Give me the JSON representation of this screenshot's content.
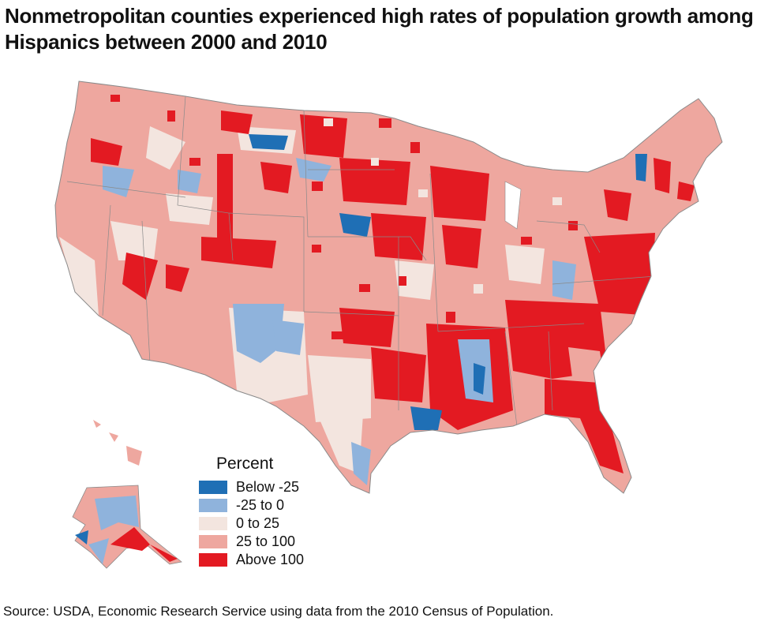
{
  "title": "Nonmetropolitan counties experienced high rates of population growth among Hispanics between 2000 and 2010",
  "source": "Source: USDA, Economic Research Service using data from the 2010 Census of Population.",
  "legend": {
    "title": "Percent",
    "items": [
      {
        "label": "Below -25",
        "color": "#1f6fb5"
      },
      {
        "label": "-25 to 0",
        "color": "#8fb3dc"
      },
      {
        "label": "0 to 25",
        "color": "#f3e5df"
      },
      {
        "label": "25 to 100",
        "color": "#eea79f"
      },
      {
        "label": "Above 100",
        "color": "#e31a22"
      }
    ]
  },
  "map": {
    "region": "United States nonmetropolitan counties",
    "colors": {
      "metro": "#ffffff",
      "border": "#8a8a8a",
      "base": "#eea79f"
    }
  }
}
